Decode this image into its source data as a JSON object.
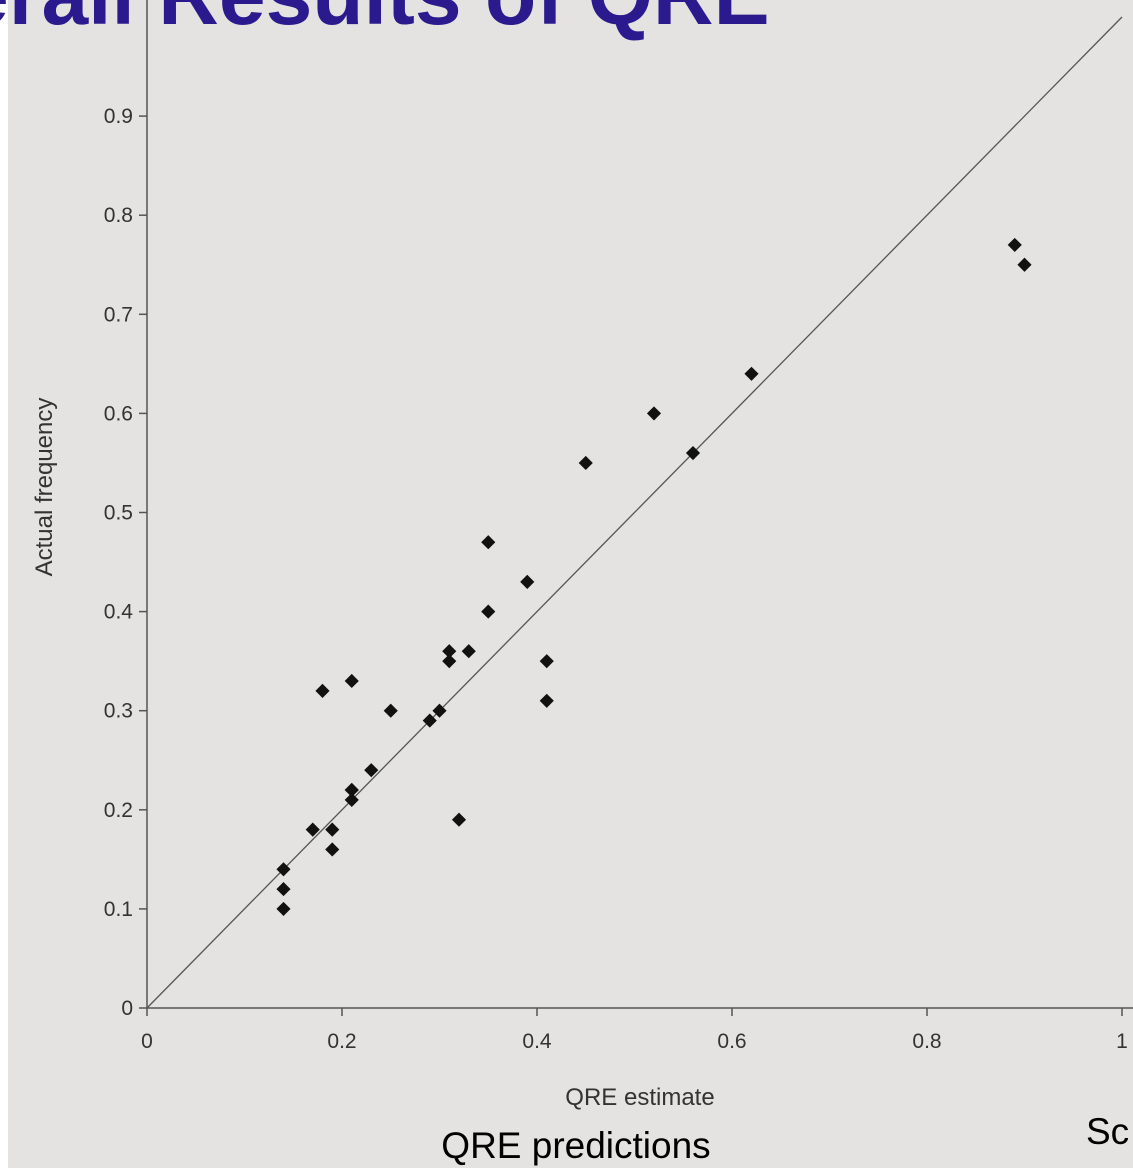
{
  "chart_data": {
    "type": "scatter",
    "title": "Overall Results of QRE",
    "x_label": "QRE estimate",
    "y_label": "Actual frequency",
    "caption": "QRE predictions",
    "side_caption": "Sc",
    "color": "#111111",
    "x": [
      0.14,
      0.14,
      0.14,
      0.17,
      0.19,
      0.19,
      0.21,
      0.21,
      0.21,
      0.23,
      0.18,
      0.21,
      0.25,
      0.29,
      0.3,
      0.32,
      0.31,
      0.31,
      0.33,
      0.35,
      0.39,
      0.41,
      0.41,
      0.35,
      0.45,
      0.52,
      0.56,
      0.62,
      0.89,
      0.9
    ],
    "values": [
      0.12,
      0.1,
      0.14,
      0.18,
      0.18,
      0.16,
      0.22,
      0.21,
      0.22,
      0.24,
      0.32,
      0.33,
      0.3,
      0.29,
      0.3,
      0.19,
      0.35,
      0.36,
      0.36,
      0.4,
      0.43,
      0.31,
      0.35,
      0.47,
      0.55,
      0.6,
      0.56,
      0.64,
      0.77,
      0.75
    ],
    "xlim": [
      0,
      1
    ],
    "ylim": [
      0,
      1
    ],
    "xticks": [
      0,
      0.2,
      0.4,
      0.6,
      0.8,
      1
    ],
    "yticks": [
      0,
      0.1,
      0.2,
      0.3,
      0.4,
      0.5,
      0.6,
      0.7,
      0.8,
      0.9
    ]
  }
}
